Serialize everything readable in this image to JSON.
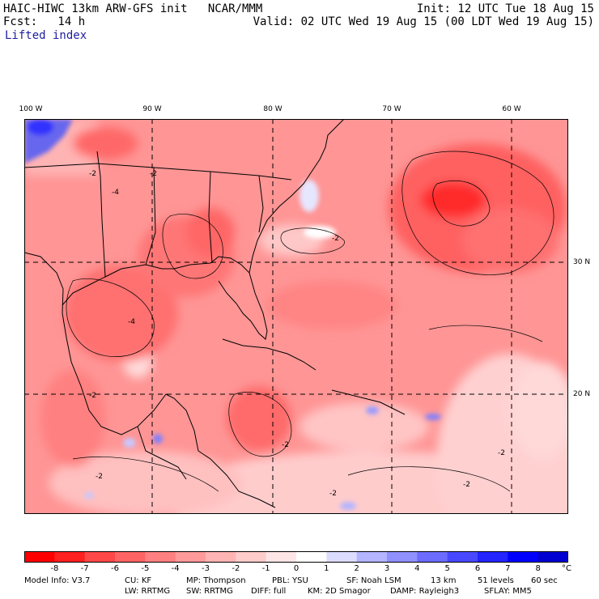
{
  "header": {
    "title_left": "HAIC-HIWC 13km ARW-GFS init   NCAR/MMM",
    "fcst": "Fcst:   14 h",
    "field": "Lifted index",
    "init": "Init: 12 UTC Tue 18 Aug 15",
    "valid": "Valid: 02 UTC Wed 19 Aug 15 (00 LDT Wed 19 Aug 15)"
  },
  "map": {
    "lon_labels": [
      "100 W",
      "90 W",
      "80 W",
      "70 W",
      "60 W"
    ],
    "lat_labels": [
      "30 N",
      "20 N"
    ],
    "contour_labels": [
      "-2",
      "-2",
      "-4",
      "-2",
      "-2",
      "-2",
      "-4",
      "-2",
      "-2",
      "-2",
      "-2"
    ]
  },
  "colorbar": {
    "levels": [
      "-8",
      "-7",
      "-6",
      "-5",
      "-4",
      "-3",
      "-2",
      "-1",
      "0",
      "1",
      "2",
      "3",
      "4",
      "5",
      "6",
      "7",
      "8"
    ],
    "unit": "°C",
    "colors": [
      "#ff0000",
      "#ff2020",
      "#ff4848",
      "#ff6464",
      "#ff8080",
      "#ff9a9a",
      "#ffb4b4",
      "#ffcccc",
      "#ffe6e6",
      "#ffffff",
      "#dcdcff",
      "#b4b4ff",
      "#9090ff",
      "#6c6cff",
      "#4848ff",
      "#2424ff",
      "#0000ff",
      "#0000d0"
    ]
  },
  "footer": {
    "line1": [
      "Model Info: V3.7",
      "CU: KF",
      "MP: Thompson",
      "PBL: YSU",
      "SF: Noah LSM",
      "13 km",
      "51 levels",
      "60 sec"
    ],
    "line2": [
      "LW: RRTMG",
      "SW: RRTMG",
      "DIFF: full",
      "KM: 2D Smagor",
      "DAMP: Rayleigh3",
      "SFLAY: MM5"
    ]
  }
}
